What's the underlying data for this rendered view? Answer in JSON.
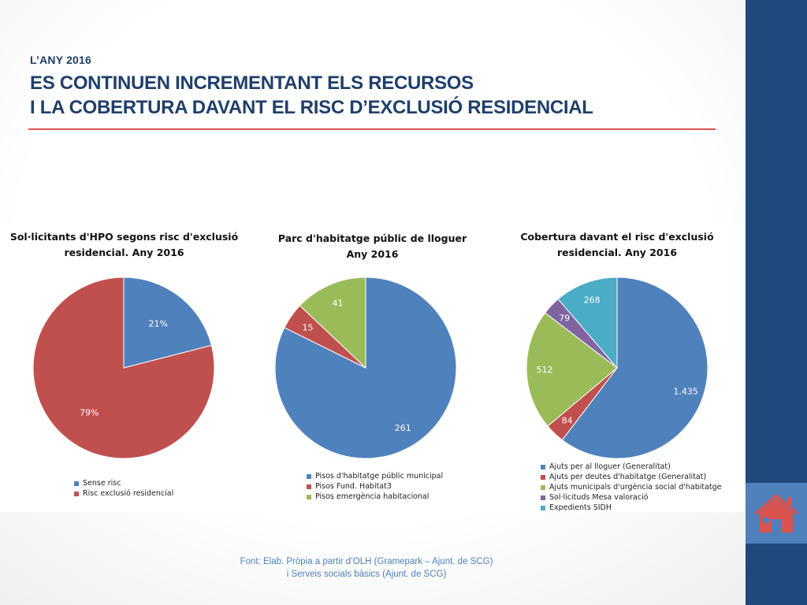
{
  "header": {
    "eyebrow": "L’ANY 2016",
    "title_line1": "ES CONTINUEN INCREMENTANT ELS RECURSOS",
    "title_line2": "I LA COBERTURA DAVANT EL RISC D’EXCLUSIÓ RESIDENCIAL"
  },
  "source": {
    "line1": "Font: Elab. Pròpia a partir d’OLH (Gramepark – Ajunt. de SCG)",
    "line2": "i Serveis socials bàsics (Ajunt. de SCG)"
  },
  "nav": {
    "home_icon": "home-icon"
  },
  "colors": {
    "accent": "#1f497d",
    "divider": "#d9534f",
    "title": "#1f3f6b"
  },
  "chart_data": [
    {
      "type": "pie",
      "title_line1": "Sol·licitants d'HPO segons risc d'exclusió",
      "title_line2": "residencial. Any 2016",
      "categories": [
        "Sense risc",
        "Risc exclusió residencial"
      ],
      "values": [
        21,
        79
      ],
      "labels": [
        "21%",
        "79%"
      ],
      "colors": [
        "#4f81bd",
        "#c0504d"
      ],
      "legend_position": "bottom"
    },
    {
      "type": "pie",
      "title_line1": "Parc d'habitatge públic de lloguer",
      "title_line2": "Any 2016",
      "categories": [
        "Pisos d'habitatge públic municipal",
        "Pisos Fund. Habitat3",
        "Pisos emergència habitacional"
      ],
      "values": [
        261,
        15,
        41
      ],
      "labels": [
        "261",
        "15",
        "41"
      ],
      "colors": [
        "#4f81bd",
        "#c0504d",
        "#9bbb59"
      ],
      "legend_position": "bottom"
    },
    {
      "type": "pie",
      "title_line1": "Cobertura davant el risc d'exclusió",
      "title_line2": "residencial. Any 2016",
      "categories": [
        "Ajuts per al lloguer (Generalitat)",
        "Ajuts per deutes d'habitatge (Generalitat)",
        "Ajuts municipals d'urgència social d'habitatge",
        "Sol·licituds Mesa valoració",
        "Expedients SIDH"
      ],
      "values": [
        1435,
        84,
        512,
        79,
        268
      ],
      "labels": [
        "1.435",
        "84",
        "512",
        "79",
        "268"
      ],
      "colors": [
        "#4f81bd",
        "#c0504d",
        "#9bbb59",
        "#8064a2",
        "#4bacc6"
      ],
      "legend_position": "bottom"
    }
  ]
}
